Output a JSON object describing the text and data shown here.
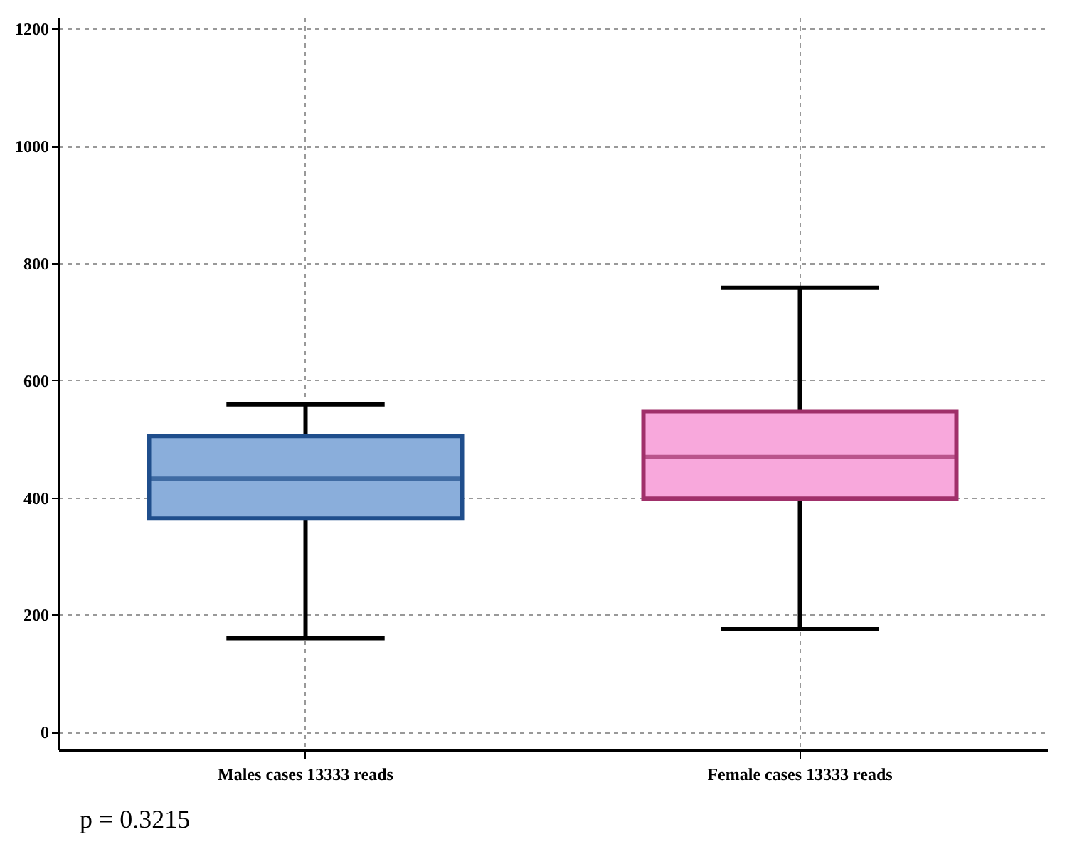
{
  "chart_data": {
    "type": "box",
    "categories": [
      "Males cases 13333 reads",
      "Female cases 13333 reads"
    ],
    "boxes": [
      {
        "low": 160,
        "q1": 364,
        "median": 432,
        "q3": 505,
        "high": 559
      },
      {
        "low": 175,
        "q1": 398,
        "median": 469,
        "q3": 547,
        "high": 758
      }
    ],
    "colors": [
      "#8aaedb",
      "#f8a8dc"
    ],
    "ylim": [
      -30,
      1220
    ],
    "yticks": [
      0,
      200,
      400,
      600,
      800,
      1000,
      1200
    ],
    "grid": true,
    "annotations": [
      "p = 0.3215"
    ]
  }
}
